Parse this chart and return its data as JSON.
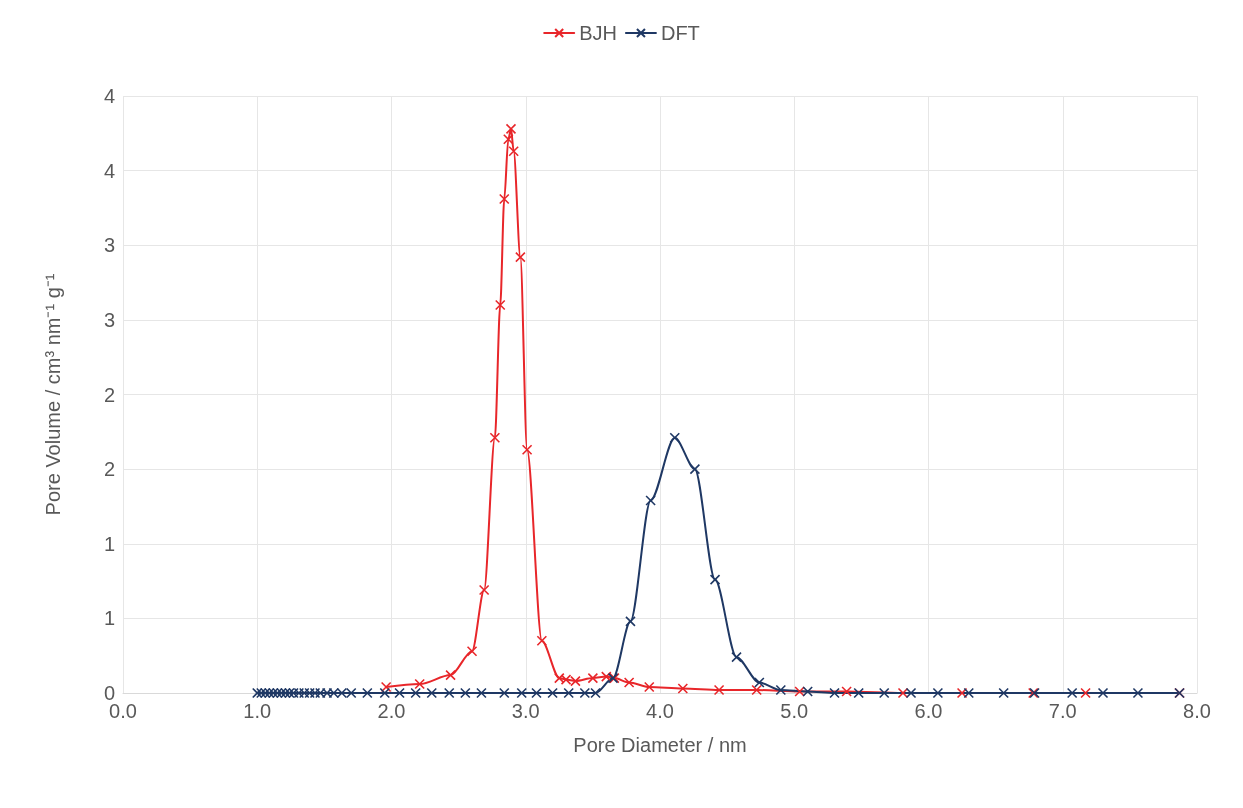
{
  "chart_data": {
    "type": "line",
    "xlabel": "Pore Diameter / nm",
    "ylabel": "Pore Volume / cm³ nm⁻¹ g⁻¹",
    "xlim": [
      0,
      8
    ],
    "xticks": [
      {
        "value": 0,
        "label": "0.0"
      },
      {
        "value": 1,
        "label": "1.0"
      },
      {
        "value": 2,
        "label": "2.0"
      },
      {
        "value": 3,
        "label": "3.0"
      },
      {
        "value": 4,
        "label": "4.0"
      },
      {
        "value": 5,
        "label": "5.0"
      },
      {
        "value": 6,
        "label": "6.0"
      },
      {
        "value": 7,
        "label": "7.0"
      },
      {
        "value": 8,
        "label": "8.0"
      }
    ],
    "ylim": [
      0,
      4
    ],
    "yticks": [
      0,
      {
        "value": 0.5,
        "label": "1"
      },
      1,
      {
        "value": 1.5,
        "label": "2"
      },
      2,
      {
        "value": 2.5,
        "label": "3"
      },
      3,
      {
        "value": 3.5,
        "label": "4"
      },
      4
    ],
    "grid": true,
    "legend": "top",
    "marker": "cross",
    "line_style": "solid",
    "series": [
      {
        "name": "BJH",
        "color": "#e8262a",
        "x": [
          1.96,
          2.21,
          2.44,
          2.6,
          2.69,
          2.77,
          2.81,
          2.84,
          2.87,
          2.89,
          2.91,
          2.96,
          3.01,
          3.12,
          3.25,
          3.3,
          3.37,
          3.5,
          3.6,
          3.66,
          3.77,
          3.92,
          4.17,
          4.44,
          4.72,
          5.04,
          5.39,
          5.81,
          6.25,
          6.78,
          7.17,
          7.87
        ],
        "values": [
          0.04,
          0.06,
          0.12,
          0.28,
          0.69,
          1.71,
          2.6,
          3.31,
          3.71,
          3.78,
          3.63,
          2.92,
          1.63,
          0.35,
          0.1,
          0.09,
          0.08,
          0.1,
          0.11,
          0.1,
          0.07,
          0.04,
          0.03,
          0.02,
          0.02,
          0.01,
          0.01,
          0,
          0,
          0,
          0,
          0
        ]
      },
      {
        "name": "DFT",
        "color": "#1f3864",
        "x": [
          1.0,
          1.03,
          1.06,
          1.09,
          1.12,
          1.15,
          1.18,
          1.21,
          1.24,
          1.27,
          1.31,
          1.35,
          1.39,
          1.43,
          1.47,
          1.52,
          1.57,
          1.63,
          1.7,
          1.82,
          1.95,
          2.06,
          2.18,
          2.3,
          2.43,
          2.55,
          2.67,
          2.84,
          2.97,
          3.08,
          3.2,
          3.32,
          3.44,
          3.52,
          3.65,
          3.78,
          3.93,
          4.11,
          4.26,
          4.41,
          4.57,
          4.74,
          4.9,
          5.1,
          5.3,
          5.48,
          5.67,
          5.87,
          6.07,
          6.3,
          6.56,
          6.79,
          7.07,
          7.3,
          7.56,
          7.87
        ],
        "values": [
          0,
          0,
          0,
          0,
          0,
          0,
          0,
          0,
          0,
          0,
          0,
          0,
          0,
          0,
          0,
          0,
          0,
          0,
          0,
          0,
          0,
          0,
          0,
          0,
          0,
          0,
          0,
          0,
          0,
          0,
          0,
          0,
          0,
          0,
          0.1,
          0.48,
          1.29,
          1.71,
          1.5,
          0.76,
          0.24,
          0.07,
          0.02,
          0.01,
          0,
          0,
          0,
          0,
          0,
          0,
          0,
          0,
          0,
          0,
          0,
          0
        ]
      }
    ]
  }
}
